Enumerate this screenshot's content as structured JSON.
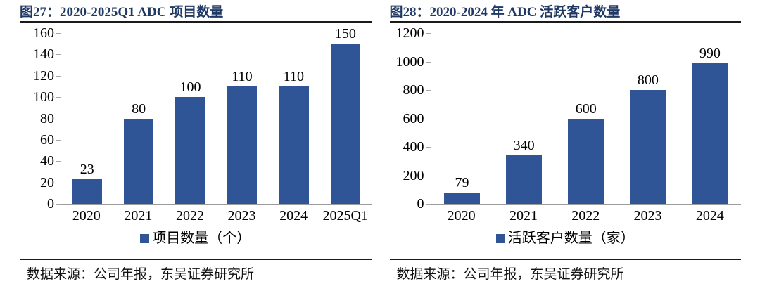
{
  "colors": {
    "bar_blue": "#2F5597",
    "title_navy": "#1F3864",
    "axis_gray": "#A6A6A6",
    "rule_black": "#1A1A1A"
  },
  "chart_data": [
    {
      "type": "bar",
      "title": "图27：2020-2025Q1 ADC 项目数量",
      "categories": [
        "2020",
        "2021",
        "2022",
        "2023",
        "2024",
        "2025Q1"
      ],
      "values": [
        23,
        80,
        100,
        110,
        110,
        150
      ],
      "ylim": [
        0,
        160
      ],
      "ytick_step": 20,
      "grid": false,
      "legend": "项目数量（个）",
      "legend_position": "bottom",
      "bar_color": "#2F5597",
      "source": "数据来源：公司年报，东吴证券研究所"
    },
    {
      "type": "bar",
      "title": "图28：2020-2024 年 ADC 活跃客户数量",
      "categories": [
        "2020",
        "2021",
        "2022",
        "2023",
        "2024"
      ],
      "values": [
        79,
        340,
        600,
        800,
        990
      ],
      "ylim": [
        0,
        1200
      ],
      "ytick_step": 200,
      "grid": false,
      "legend": "活跃客户数量（家）",
      "legend_position": "bottom",
      "bar_color": "#2F5597",
      "source": "数据来源：公司年报，东吴证券研究所"
    }
  ]
}
